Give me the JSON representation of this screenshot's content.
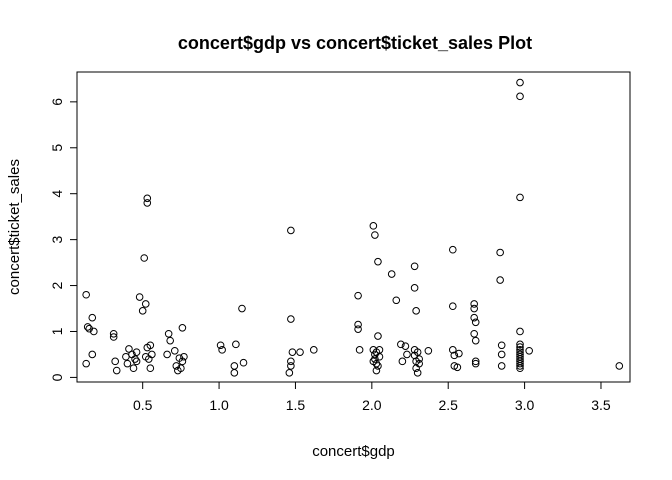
{
  "chart_data": {
    "type": "scatter",
    "title": "concert$gdp vs concert$ticket_sales Plot",
    "xlabel": "concert$gdp",
    "ylabel": "concert$ticket_sales",
    "xlim": [
      0.07,
      3.69
    ],
    "ylim": [
      -0.1,
      6.65
    ],
    "xticks": [
      0.5,
      1.0,
      1.5,
      2.0,
      2.5,
      3.0,
      3.5
    ],
    "xtick_labels": [
      "0.5",
      "1.0",
      "1.5",
      "2.0",
      "2.5",
      "3.0",
      "3.5"
    ],
    "yticks": [
      0,
      1,
      2,
      3,
      4,
      5,
      6
    ],
    "ytick_labels": [
      "0",
      "1",
      "2",
      "3",
      "4",
      "5",
      "6"
    ],
    "grid": false,
    "points": [
      [
        0.13,
        1.8
      ],
      [
        0.14,
        1.1
      ],
      [
        0.15,
        1.06
      ],
      [
        0.17,
        1.3
      ],
      [
        0.18,
        1.0
      ],
      [
        0.13,
        0.3
      ],
      [
        0.17,
        0.5
      ],
      [
        0.31,
        0.95
      ],
      [
        0.31,
        0.88
      ],
      [
        0.32,
        0.35
      ],
      [
        0.33,
        0.15
      ],
      [
        0.39,
        0.45
      ],
      [
        0.4,
        0.3
      ],
      [
        0.41,
        0.62
      ],
      [
        0.43,
        0.5
      ],
      [
        0.44,
        0.2
      ],
      [
        0.45,
        0.4
      ],
      [
        0.46,
        0.55
      ],
      [
        0.46,
        0.35
      ],
      [
        0.48,
        1.75
      ],
      [
        0.5,
        1.45
      ],
      [
        0.51,
        2.6
      ],
      [
        0.52,
        1.6
      ],
      [
        0.53,
        3.9
      ],
      [
        0.53,
        3.8
      ],
      [
        0.52,
        0.45
      ],
      [
        0.53,
        0.65
      ],
      [
        0.54,
        0.4
      ],
      [
        0.55,
        0.7
      ],
      [
        0.55,
        0.2
      ],
      [
        0.56,
        0.5
      ],
      [
        0.66,
        0.5
      ],
      [
        0.67,
        0.95
      ],
      [
        0.68,
        0.8
      ],
      [
        0.71,
        0.58
      ],
      [
        0.72,
        0.25
      ],
      [
        0.73,
        0.15
      ],
      [
        0.74,
        0.42
      ],
      [
        0.75,
        0.2
      ],
      [
        0.76,
        0.35
      ],
      [
        0.76,
        1.08
      ],
      [
        0.77,
        0.45
      ],
      [
        1.01,
        0.7
      ],
      [
        1.02,
        0.6
      ],
      [
        1.1,
        0.1
      ],
      [
        1.1,
        0.25
      ],
      [
        1.11,
        0.72
      ],
      [
        1.15,
        1.5
      ],
      [
        1.16,
        0.32
      ],
      [
        1.46,
        0.1
      ],
      [
        1.47,
        0.25
      ],
      [
        1.47,
        0.35
      ],
      [
        1.47,
        1.27
      ],
      [
        1.48,
        0.55
      ],
      [
        1.47,
        3.2
      ],
      [
        1.53,
        0.55
      ],
      [
        1.62,
        0.6
      ],
      [
        1.91,
        1.78
      ],
      [
        1.91,
        1.15
      ],
      [
        1.91,
        1.05
      ],
      [
        1.92,
        0.6
      ],
      [
        2.01,
        3.3
      ],
      [
        2.02,
        3.1
      ],
      [
        2.01,
        0.6
      ],
      [
        2.02,
        0.5
      ],
      [
        2.02,
        0.4
      ],
      [
        2.03,
        0.3
      ],
      [
        2.03,
        0.15
      ],
      [
        2.04,
        0.25
      ],
      [
        2.04,
        2.52
      ],
      [
        2.04,
        0.9
      ],
      [
        2.05,
        0.6
      ],
      [
        2.05,
        0.45
      ],
      [
        2.03,
        0.55
      ],
      [
        2.01,
        0.35
      ],
      [
        2.13,
        2.25
      ],
      [
        2.16,
        1.68
      ],
      [
        2.19,
        0.72
      ],
      [
        2.2,
        0.35
      ],
      [
        2.22,
        0.68
      ],
      [
        2.23,
        0.5
      ],
      [
        2.28,
        2.42
      ],
      [
        2.28,
        1.95
      ],
      [
        2.29,
        1.45
      ],
      [
        2.28,
        0.6
      ],
      [
        2.28,
        0.48
      ],
      [
        2.29,
        0.35
      ],
      [
        2.29,
        0.2
      ],
      [
        2.3,
        0.1
      ],
      [
        2.3,
        0.55
      ],
      [
        2.31,
        0.4
      ],
      [
        2.31,
        0.3
      ],
      [
        2.37,
        0.58
      ],
      [
        2.53,
        2.78
      ],
      [
        2.53,
        1.55
      ],
      [
        2.53,
        0.6
      ],
      [
        2.54,
        0.48
      ],
      [
        2.54,
        0.25
      ],
      [
        2.56,
        0.22
      ],
      [
        2.57,
        0.52
      ],
      [
        2.67,
        1.6
      ],
      [
        2.67,
        1.5
      ],
      [
        2.67,
        1.3
      ],
      [
        2.68,
        1.2
      ],
      [
        2.67,
        0.95
      ],
      [
        2.68,
        0.8
      ],
      [
        2.68,
        0.3
      ],
      [
        2.68,
        0.35
      ],
      [
        2.84,
        2.72
      ],
      [
        2.84,
        2.12
      ],
      [
        2.85,
        0.7
      ],
      [
        2.85,
        0.5
      ],
      [
        2.85,
        0.25
      ],
      [
        2.97,
        6.42
      ],
      [
        2.97,
        6.12
      ],
      [
        2.97,
        3.92
      ],
      [
        2.97,
        1.0
      ],
      [
        2.97,
        0.72
      ],
      [
        2.97,
        0.66
      ],
      [
        2.97,
        0.6
      ],
      [
        2.97,
        0.55
      ],
      [
        2.97,
        0.5
      ],
      [
        2.97,
        0.45
      ],
      [
        2.97,
        0.4
      ],
      [
        2.97,
        0.35
      ],
      [
        2.97,
        0.3
      ],
      [
        2.97,
        0.25
      ],
      [
        2.97,
        0.2
      ],
      [
        3.03,
        0.58
      ],
      [
        3.62,
        0.25
      ]
    ]
  }
}
